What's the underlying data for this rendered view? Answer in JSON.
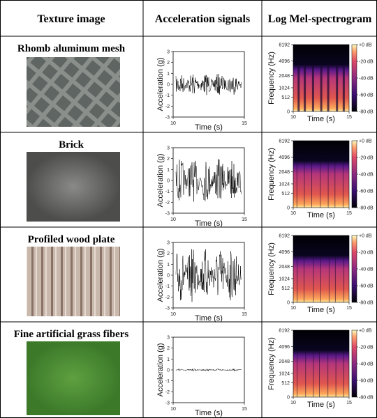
{
  "header": [
    "Texture image",
    "Acceleration signals",
    "Log Mel-spectrogram"
  ],
  "rows": [
    {
      "label": "Rhomb aluminum mesh",
      "amplitude": 1
    },
    {
      "label": "Brick",
      "amplitude": 2
    },
    {
      "label": "Profiled wood plate",
      "amplitude": 2.5
    },
    {
      "label": "Fine artificial grass fibers",
      "amplitude": 0.1
    }
  ],
  "signal_axes": {
    "x_label": "Time (s)",
    "y_label": "Acceleration (g)",
    "xlim": [
      10,
      15
    ],
    "xticks": [
      10,
      15
    ],
    "ylim": [
      -3,
      3
    ],
    "yticks": [
      -3,
      -2,
      -1,
      0,
      1,
      2,
      3
    ]
  },
  "spectrogram_axes": {
    "x_label": "Time (s)",
    "y_label": "Frequency (Hz)",
    "xlim": [
      10,
      15
    ],
    "xticks": [
      10,
      15
    ],
    "yscale": "mel",
    "ylim": [
      0,
      8192
    ],
    "yticks": [
      0,
      512,
      1024,
      2048,
      4096,
      8192
    ],
    "colorbar_lim": [
      -80,
      0
    ],
    "colorbar_ticks": [
      {
        "value": 0,
        "label": "+0 dB"
      },
      {
        "value": -20,
        "label": "-20 dB"
      },
      {
        "value": -40,
        "label": "-40 dB"
      },
      {
        "value": -60,
        "label": "-60 dB"
      },
      {
        "value": -80,
        "label": "-80 dB"
      }
    ]
  }
}
